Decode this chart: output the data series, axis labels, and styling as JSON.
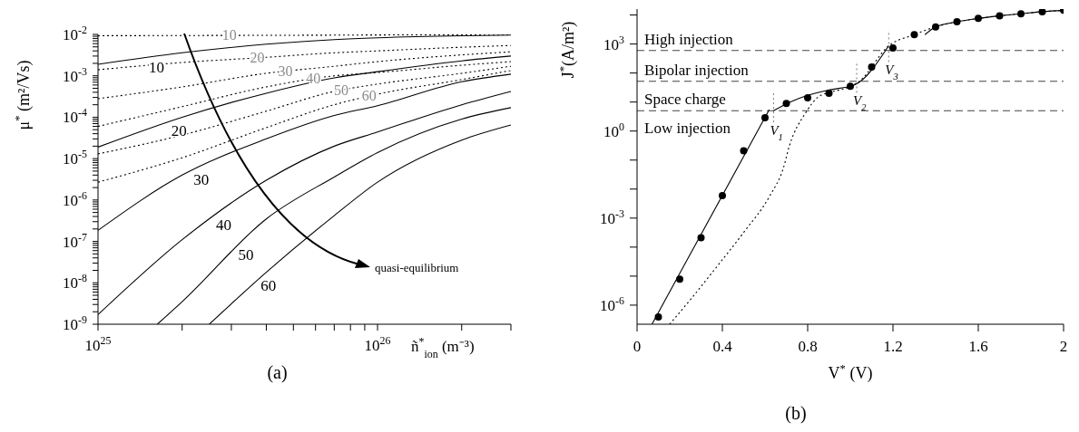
{
  "chart_data": [
    {
      "type": "line",
      "title": "(a)",
      "xlabel": "ñ$^{*}$$_{ion}$ (m⁻³)",
      "ylabel": "μ$^{*}$ (m²/Vs)",
      "log": "xy",
      "annotations": [
        "quasi-equilibrium"
      ],
      "xlim": [
        1e+25,
        3e+26
      ],
      "xticks": [
        {
          "value": 1e+25,
          "label": "10$^{25}$"
        },
        {
          "value": 2e+25,
          "label": null
        },
        {
          "value": 3e+25,
          "label": null
        },
        {
          "value": 4e+25,
          "label": null
        },
        {
          "value": 5e+25,
          "label": null
        },
        {
          "value": 6e+25,
          "label": null
        },
        {
          "value": 7e+25,
          "label": null
        },
        {
          "value": 8e+25,
          "label": null
        },
        {
          "value": 9e+25,
          "label": null
        },
        {
          "value": 1e+26,
          "label": "10$^{26}$"
        },
        {
          "value": 2e+26,
          "label": null
        },
        {
          "value": 3e+26,
          "label": null
        }
      ],
      "ylim": [
        1e-09,
        0.01
      ],
      "yticks": [
        {
          "value": 1e-09,
          "label": "10$^{-9}$"
        },
        {
          "value": 2e-09,
          "label": null
        },
        {
          "value": 3e-09,
          "label": null
        },
        {
          "value": 4e-09,
          "label": null
        },
        {
          "value": 5e-09,
          "label": null
        },
        {
          "value": 6e-09,
          "label": null
        },
        {
          "value": 7e-09,
          "label": null
        },
        {
          "value": 8e-09,
          "label": null
        },
        {
          "value": 9e-09,
          "label": null
        },
        {
          "value": 1e-08,
          "label": "10$^{-8}$"
        },
        {
          "value": 2e-08,
          "label": null
        },
        {
          "value": 3e-08,
          "label": null
        },
        {
          "value": 4e-08,
          "label": null
        },
        {
          "value": 5e-08,
          "label": null
        },
        {
          "value": 6e-08,
          "label": null
        },
        {
          "value": 7e-08,
          "label": null
        },
        {
          "value": 8e-08,
          "label": null
        },
        {
          "value": 9e-08,
          "label": null
        },
        {
          "value": 1e-07,
          "label": "10$^{-7}$"
        },
        {
          "value": 2e-07,
          "label": null
        },
        {
          "value": 3e-07,
          "label": null
        },
        {
          "value": 4e-07,
          "label": null
        },
        {
          "value": 5e-07,
          "label": null
        },
        {
          "value": 6e-07,
          "label": null
        },
        {
          "value": 7e-07,
          "label": null
        },
        {
          "value": 8e-07,
          "label": null
        },
        {
          "value": 9e-07,
          "label": null
        },
        {
          "value": 1e-06,
          "label": "10$^{-6}$"
        },
        {
          "value": 2e-06,
          "label": null
        },
        {
          "value": 3e-06,
          "label": null
        },
        {
          "value": 4e-06,
          "label": null
        },
        {
          "value": 5e-06,
          "label": null
        },
        {
          "value": 6e-06,
          "label": null
        },
        {
          "value": 7e-06,
          "label": null
        },
        {
          "value": 8e-06,
          "label": null
        },
        {
          "value": 9e-06,
          "label": null
        },
        {
          "value": 1e-05,
          "label": "10$^{-5}$"
        },
        {
          "value": 2e-05,
          "label": null
        },
        {
          "value": 3e-05,
          "label": null
        },
        {
          "value": 4e-05,
          "label": null
        },
        {
          "value": 5e-05,
          "label": null
        },
        {
          "value": 6e-05,
          "label": null
        },
        {
          "value": 7e-05,
          "label": null
        },
        {
          "value": 8e-05,
          "label": null
        },
        {
          "value": 9e-05,
          "label": null
        },
        {
          "value": 0.0001,
          "label": "10$^{-4}$"
        },
        {
          "value": 0.0002,
          "label": null
        },
        {
          "value": 0.0003,
          "label": null
        },
        {
          "value": 0.0004,
          "label": null
        },
        {
          "value": 0.0005,
          "label": null
        },
        {
          "value": 0.0006,
          "label": null
        },
        {
          "value": 0.0007,
          "label": null
        },
        {
          "value": 0.0008,
          "label": null
        },
        {
          "value": 0.0009,
          "label": null
        },
        {
          "value": 0.001,
          "label": "10$^{-3}$"
        },
        {
          "value": 0.002,
          "label": null
        },
        {
          "value": 0.003,
          "label": null
        },
        {
          "value": 0.004,
          "label": null
        },
        {
          "value": 0.005,
          "label": null
        },
        {
          "value": 0.006,
          "label": null
        },
        {
          "value": 0.007,
          "label": null
        },
        {
          "value": 0.008,
          "label": null
        },
        {
          "value": 0.009,
          "label": null
        },
        {
          "value": 0.01,
          "label": "10$^{-2}$"
        }
      ],
      "x": [
        1e+25,
        2e+25,
        4e+25,
        7e+25,
        1e+26,
        2e+26,
        3e+26
      ],
      "series": [
        {
          "name": "10",
          "color": "#000000",
          "line_style": "solid",
          "values": [
            0.0019,
            0.0036,
            0.0058,
            0.0075,
            0.0083,
            0.0093,
            0.0096
          ]
        },
        {
          "name": "20",
          "color": "#000000",
          "line_style": "solid",
          "values": [
            1.9e-05,
            0.0001,
            0.00038,
            0.00089,
            0.00126,
            0.0023,
            0.003
          ]
        },
        {
          "name": "30",
          "color": "#000000",
          "line_style": "solid",
          "values": [
            1.85e-07,
            4e-06,
            3e-05,
            0.00011,
            0.00019,
            0.00072,
            0.0011
          ]
        },
        {
          "name": "40",
          "color": "#000000",
          "line_style": "solid",
          "values": [
            1.7e-09,
            1.1e-07,
            3e-06,
            2e-05,
            4.4e-05,
            0.0002,
            0.00042
          ]
        },
        {
          "name": "50",
          "color": "#000000",
          "line_style": "solid",
          "x": [
            1.63e+25,
            2e+25,
            4e+25,
            7e+25,
            1e+26,
            2e+26,
            3e+26
          ],
          "values": [
            1e-09,
            3.5e-09,
            3.5e-07,
            3.6e-06,
            1.4e-05,
            9e-05,
            0.00017
          ]
        },
        {
          "name": "60",
          "color": "#000000",
          "line_style": "solid",
          "x": [
            2.5e+25,
            4e+25,
            7e+25,
            1e+26,
            2e+26,
            3e+26
          ],
          "values": [
            1e-09,
            1.8e-08,
            4.2e-07,
            2.7e-06,
            2.8e-05,
            6.5e-05
          ]
        },
        {
          "name": "10",
          "color": "#000000",
          "line_style": "dotted",
          "values": [
            0.0093,
            0.0094,
            0.0095,
            0.0096,
            0.0097,
            0.0098,
            0.0099
          ]
        },
        {
          "name": "20",
          "color": "#000000",
          "line_style": "dotted",
          "values": [
            0.0014,
            0.0021,
            0.0028,
            0.0036,
            0.004,
            0.0049,
            0.0054
          ]
        },
        {
          "name": "30",
          "color": "#000000",
          "line_style": "dotted",
          "values": [
            0.00028,
            0.00054,
            0.00115,
            0.0017,
            0.0022,
            0.0032,
            0.0038
          ]
        },
        {
          "name": "40",
          "color": "#000000",
          "line_style": "dotted",
          "values": [
            6e-05,
            0.00018,
            0.00054,
            0.001,
            0.0012,
            0.0018,
            0.0022
          ]
        },
        {
          "name": "50",
          "color": "#000000",
          "line_style": "dotted",
          "values": [
            1.3e-05,
            3.7e-05,
            0.00014,
            0.00042,
            0.00063,
            0.00115,
            0.0017
          ]
        },
        {
          "name": "60",
          "color": "#000000",
          "line_style": "dotted",
          "values": [
            2.7e-06,
            1.05e-05,
            5.6e-05,
            0.0002,
            0.00036,
            0.00081,
            0.00135
          ]
        }
      ]
    },
    {
      "type": "line",
      "title": "(b)",
      "xlabel": "V$^{*}$ (V)",
      "ylabel": "J$^{*}$(A/m²)",
      "log": "y",
      "annotations": [
        "Low injection"
      ],
      "xlim": [
        0,
        2
      ],
      "xticks": [
        0,
        0.4,
        0.8,
        1.2,
        1.6,
        2
      ],
      "ylim": [
        2.2e-07,
        16000.0
      ],
      "yticks": [
        {
          "value": 1e-06,
          "label": "10$^{-6}$"
        },
        {
          "value": 1e-05,
          "label": null
        },
        {
          "value": 0.0001,
          "label": null
        },
        {
          "value": 0.001,
          "label": "10$^{-3}$"
        },
        {
          "value": 0.01,
          "label": null
        },
        {
          "value": 0.1,
          "label": null
        },
        {
          "value": 1,
          "label": "10$^{0}$"
        },
        {
          "value": 10,
          "label": null
        },
        {
          "value": 100,
          "label": null
        },
        {
          "value": 1000,
          "label": "10$^{3}$"
        },
        {
          "value": 10000,
          "label": null
        }
      ],
      "ref_lines": [
        {
          "axis": "y",
          "value": 5,
          "label": "Space charge",
          "color": "#444444",
          "line_style": "dashed"
        },
        {
          "axis": "y",
          "value": 52,
          "label": "Bipolar injection",
          "color": "#444444",
          "line_style": "dashed"
        },
        {
          "axis": "y",
          "value": 600,
          "label": "High injection",
          "color": "#444444",
          "line_style": "dashed"
        },
        {
          "axis": "x",
          "value": 0.64,
          "label": "V$_{1}$",
          "color": "#777777",
          "line_style": "dotted"
        },
        {
          "axis": "x",
          "value": 1.03,
          "label": "V$_{2}$",
          "color": "#777777",
          "line_style": "dotted"
        },
        {
          "axis": "x",
          "value": 1.18,
          "label": "V$_{3}$",
          "color": "#777777",
          "line_style": "dotted"
        }
      ],
      "series": [
        {
          "type": "scatter",
          "marker": "circle",
          "color": "#000000",
          "x": [
            0.1,
            0.2,
            0.3,
            0.4,
            0.5,
            0.6,
            0.7,
            0.8,
            0.9,
            1.0,
            1.1,
            1.2,
            1.3,
            1.4,
            1.5,
            1.6,
            1.7,
            1.8,
            1.9,
            2.0
          ],
          "values": [
            3.9e-07,
            7.9e-06,
            0.00021,
            0.006,
            0.21,
            2.85,
            8.9,
            14,
            20,
            35,
            160,
            730,
            2100,
            3900,
            5800,
            7600,
            9400,
            11000,
            13000,
            14500
          ]
        },
        {
          "color": "#000000",
          "line_style": "solid",
          "x": [
            0.07,
            0.62,
            0.63,
            0.64,
            0.715,
            0.8,
            0.9,
            1.02,
            1.18,
            1.25,
            1.35,
            1.4,
            1.5,
            1.6,
            1.7,
            1.8,
            1.9,
            2.0
          ],
          "values": [
            2.2e-07,
            5.5,
            null,
            5,
            9.8,
            17,
            26,
            39,
            870,
            null,
            2100,
            3900,
            5800,
            7600,
            9400,
            11000,
            13000,
            14500
          ]
        },
        {
          "color": "#000000",
          "line_style": "dotted",
          "x": [
            0.153,
            0.26,
            0.38,
            0.5,
            0.625,
            0.685,
            0.715,
            0.79,
            0.85,
            0.91,
            0.99,
            1.04,
            1.18,
            1.3,
            1.4,
            1.5,
            1.6,
            1.7,
            1.8,
            1.9,
            2.0
          ],
          "values": [
            2.2e-07,
            1.9e-06,
            2.4e-05,
            0.00032,
            0.0063,
            0.05,
            0.32,
            4.2,
            15,
            22,
            32,
            50,
            870,
            2100,
            3900,
            5800,
            7600,
            9400,
            11000,
            13000,
            14500
          ]
        }
      ]
    }
  ]
}
